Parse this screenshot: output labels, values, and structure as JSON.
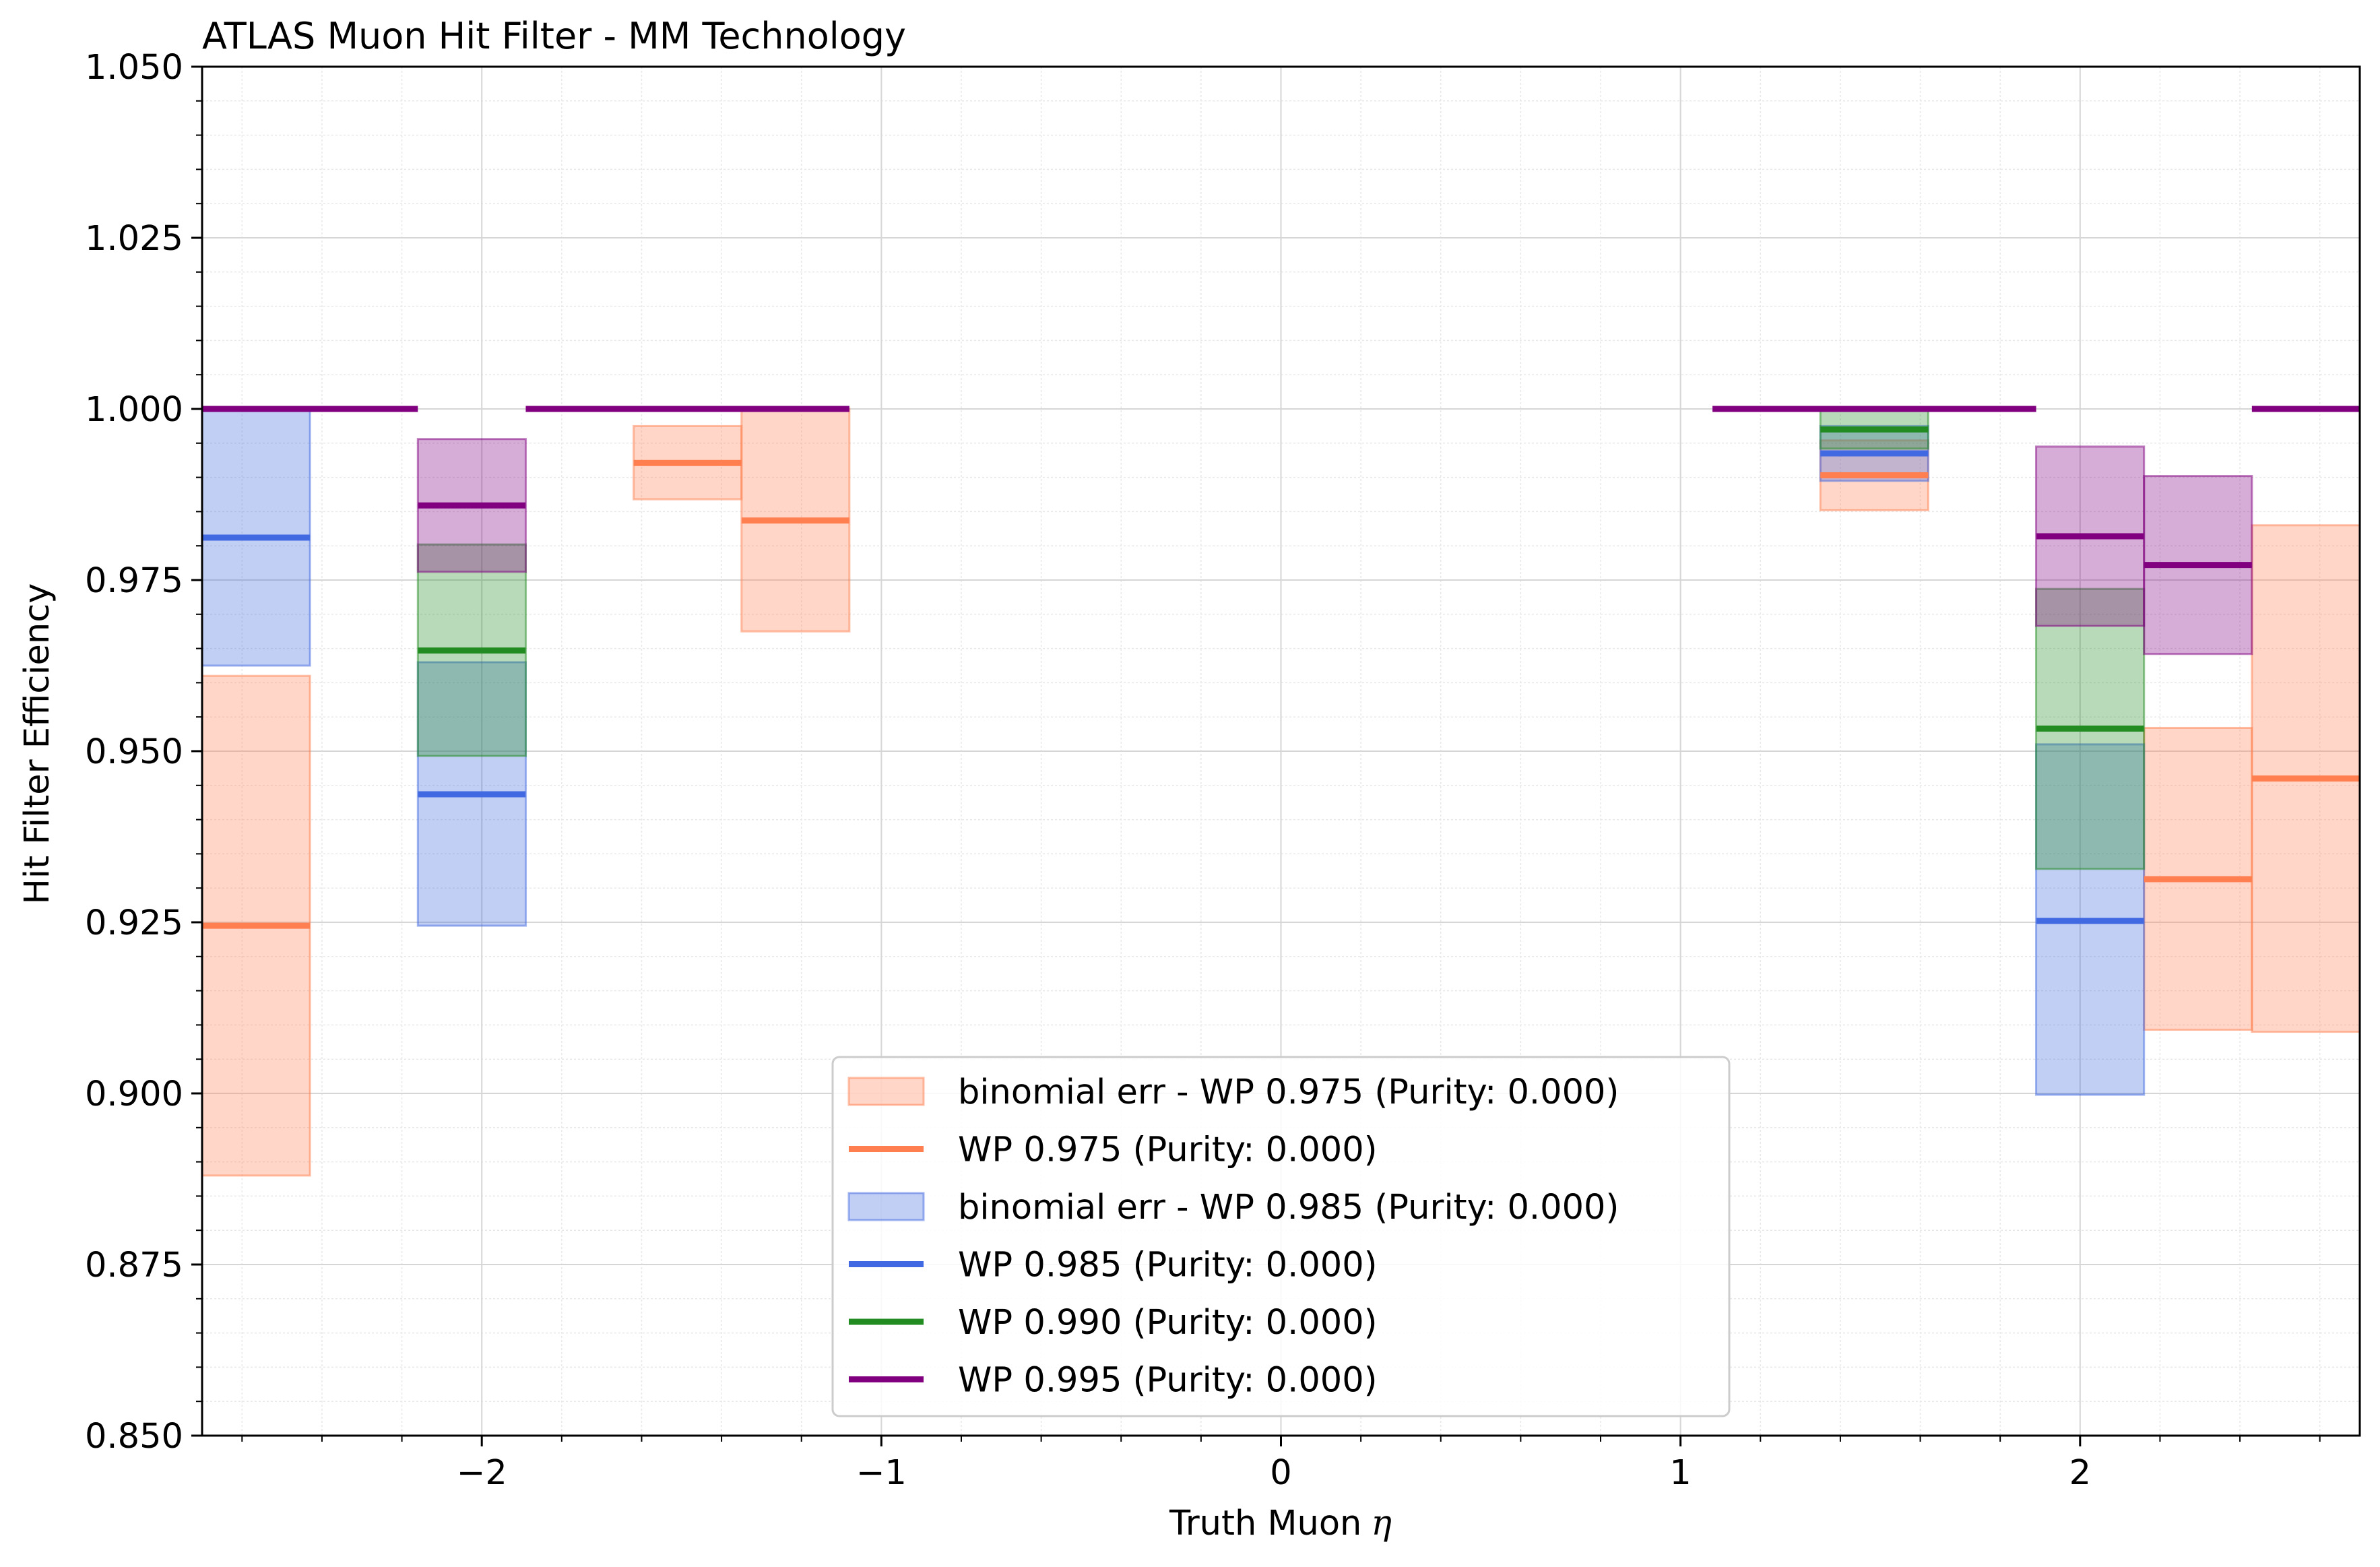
{
  "chart_data": {
    "type": "bar",
    "title": "ATLAS Muon Hit Filter - MM Technology",
    "xlabel": "Truth Muon",
    "xlabel_symbol": "η",
    "ylabel": "Hit Filter Efficiency",
    "xlim": [
      -2.7,
      2.7
    ],
    "ylim": [
      0.85,
      1.05
    ],
    "xticks": [
      -2,
      -1,
      0,
      1,
      2
    ],
    "xtick_labels": [
      "−2",
      "−1",
      "0",
      "1",
      "2"
    ],
    "yticks": [
      0.85,
      0.875,
      0.9,
      0.925,
      0.95,
      0.975,
      1.0,
      1.025,
      1.05
    ],
    "ytick_labels": [
      "0.850",
      "0.875",
      "0.900",
      "0.925",
      "0.950",
      "0.975",
      "1.000",
      "1.025",
      "1.050"
    ],
    "grid": true,
    "minor_grid": true,
    "legend_position": "lower center",
    "series": [
      {
        "name": "WP 0.975 (Purity: 0.000)",
        "error_name": "binomial err - WP 0.975 (Purity: 0.000)",
        "color": "#ff7f50",
        "bins": [
          {
            "xlo": -2.7,
            "xhi": -2.43,
            "value": 0.9245,
            "err_lo": 0.888,
            "err_hi": 0.961
          },
          {
            "xlo": -1.62,
            "xhi": -1.35,
            "value": 0.9921,
            "err_lo": 0.9868,
            "err_hi": 0.9975
          },
          {
            "xlo": -1.35,
            "xhi": -1.08,
            "value": 0.9837,
            "err_lo": 0.9675,
            "err_hi": 1.0
          },
          {
            "xlo": 1.35,
            "xhi": 1.62,
            "value": 0.9903,
            "err_lo": 0.9852,
            "err_hi": 0.9954
          },
          {
            "xlo": 2.16,
            "xhi": 2.43,
            "value": 0.9313,
            "err_lo": 0.9093,
            "err_hi": 0.9534
          },
          {
            "xlo": 2.43,
            "xhi": 2.7,
            "value": 0.946,
            "err_lo": 0.909,
            "err_hi": 0.983
          }
        ]
      },
      {
        "name": "WP 0.985 (Purity: 0.000)",
        "error_name": "binomial err - WP 0.985 (Purity: 0.000)",
        "color": "#4169e1",
        "bins": [
          {
            "xlo": -2.7,
            "xhi": -2.43,
            "value": 0.9812,
            "err_lo": 0.9625,
            "err_hi": 1.0
          },
          {
            "xlo": -2.16,
            "xhi": -1.89,
            "value": 0.9437,
            "err_lo": 0.9245,
            "err_hi": 0.963
          },
          {
            "xlo": 1.35,
            "xhi": 1.62,
            "value": 0.9935,
            "err_lo": 0.9895,
            "err_hi": 0.9975
          },
          {
            "xlo": 1.89,
            "xhi": 2.16,
            "value": 0.9252,
            "err_lo": 0.8998,
            "err_hi": 0.951
          }
        ]
      },
      {
        "name": "WP 0.990 (Purity: 0.000)",
        "color": "#228b22",
        "bins": [
          {
            "xlo": -2.16,
            "xhi": -1.89,
            "value": 0.9647,
            "err_lo": 0.9493,
            "err_hi": 0.9802
          },
          {
            "xlo": 1.35,
            "xhi": 1.62,
            "value": 0.997,
            "err_lo": 0.9942,
            "err_hi": 1.0
          },
          {
            "xlo": 1.89,
            "xhi": 2.16,
            "value": 0.9533,
            "err_lo": 0.9328,
            "err_hi": 0.9737
          }
        ]
      },
      {
        "name": "WP 0.995 (Purity: 0.000)",
        "color": "#800080",
        "bins": [
          {
            "xlo": -2.7,
            "xhi": -2.16,
            "value": 1.0
          },
          {
            "xlo": -2.16,
            "xhi": -1.89,
            "value": 0.9859,
            "err_lo": 0.9762,
            "err_hi": 0.9956
          },
          {
            "xlo": -1.89,
            "xhi": -1.08,
            "value": 1.0
          },
          {
            "xlo": 1.08,
            "xhi": 1.89,
            "value": 1.0
          },
          {
            "xlo": 1.89,
            "xhi": 2.16,
            "value": 0.9814,
            "err_lo": 0.9683,
            "err_hi": 0.9945
          },
          {
            "xlo": 2.16,
            "xhi": 2.43,
            "value": 0.9772,
            "err_lo": 0.9642,
            "err_hi": 0.9902
          },
          {
            "xlo": 2.43,
            "xhi": 2.7,
            "value": 1.0
          }
        ]
      }
    ],
    "legend_entries": [
      {
        "label": "binomial err - WP 0.975 (Purity: 0.000)",
        "kind": "patch",
        "color": "#ff7f50"
      },
      {
        "label": "WP 0.975 (Purity: 0.000)",
        "kind": "line",
        "color": "#ff7f50"
      },
      {
        "label": "binomial err - WP 0.985 (Purity: 0.000)",
        "kind": "patch",
        "color": "#4169e1"
      },
      {
        "label": "WP 0.985 (Purity: 0.000)",
        "kind": "line",
        "color": "#4169e1"
      },
      {
        "label": "WP 0.990 (Purity: 0.000)",
        "kind": "line",
        "color": "#228b22"
      },
      {
        "label": "WP 0.995 (Purity: 0.000)",
        "kind": "line",
        "color": "#800080"
      }
    ]
  }
}
